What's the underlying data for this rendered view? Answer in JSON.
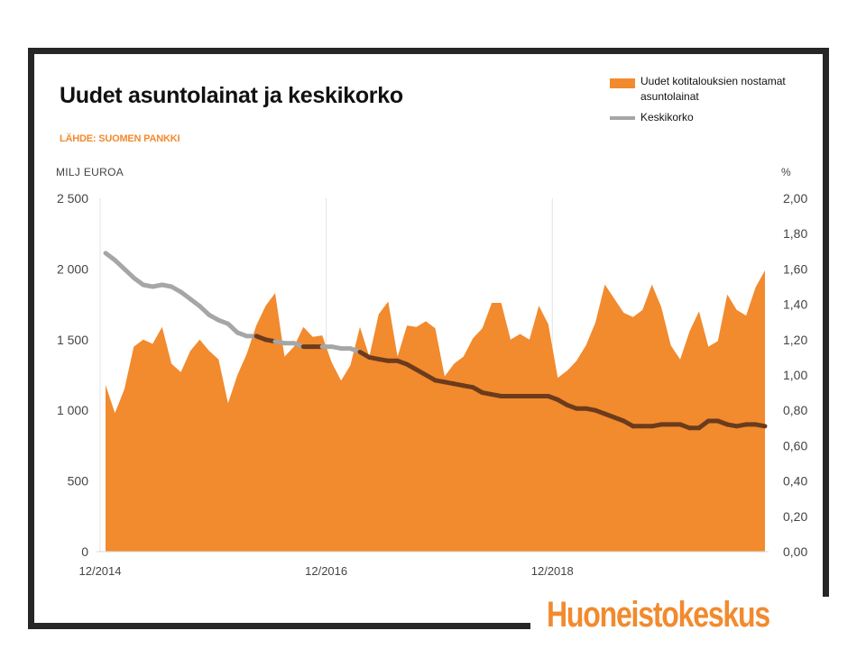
{
  "title": "Uudet asuntolainat ja keskikorko",
  "source": "LÄHDE: SUOMEN PANKKI",
  "brand": "Huoneistokeskus",
  "colors": {
    "area": "#f28a2e",
    "line_gray": "#a6a6a6",
    "line_dark": "#6b3b1c",
    "frame": "#262626"
  },
  "chart_data": {
    "type": "area",
    "title": "Uudet asuntolainat ja keskikorko",
    "left_unit": "MILJ EUROA",
    "right_unit": "%",
    "left_ticks": [
      "0",
      "500",
      "1 000",
      "1 500",
      "2 000",
      "2 500"
    ],
    "right_ticks": [
      "0,00",
      "0,20",
      "0,40",
      "0,60",
      "0,80",
      "1,00",
      "1,20",
      "1,40",
      "1,60",
      "1,80",
      "2,00"
    ],
    "x_tick_labels": [
      "12/2014",
      "12/2016",
      "12/2018"
    ],
    "ylim_left": [
      0,
      2500
    ],
    "ylim_right": [
      0,
      2.0
    ],
    "grid": "vertical lines at x tick labels",
    "legend_position": "top-right",
    "legend": [
      "Uudet kotitalouksien nostamat asuntolainat",
      "Keskikorko"
    ],
    "x_start": "2014-12",
    "x_end": "2020-08",
    "series": [
      {
        "name": "Uudet kotitalouksien nostamat asuntolainat",
        "axis": "left",
        "type": "area",
        "values": [
          1180,
          980,
          1150,
          1450,
          1500,
          1470,
          1590,
          1330,
          1270,
          1420,
          1500,
          1420,
          1360,
          1050,
          1250,
          1400,
          1600,
          1740,
          1830,
          1380,
          1450,
          1590,
          1520,
          1530,
          1340,
          1210,
          1320,
          1590,
          1380,
          1680,
          1770,
          1380,
          1600,
          1590,
          1630,
          1580,
          1240,
          1330,
          1380,
          1510,
          1580,
          1760,
          1760,
          1500,
          1540,
          1500,
          1740,
          1610,
          1230,
          1280,
          1350,
          1460,
          1620,
          1890,
          1790,
          1690,
          1660,
          1710,
          1890,
          1730,
          1460,
          1360,
          1560,
          1700,
          1450,
          1490,
          1820,
          1710,
          1670,
          1870,
          1990
        ]
      },
      {
        "name": "Keskikorko",
        "axis": "right",
        "type": "line",
        "values": [
          1.69,
          1.65,
          1.6,
          1.55,
          1.51,
          1.5,
          1.51,
          1.5,
          1.47,
          1.43,
          1.39,
          1.34,
          1.31,
          1.29,
          1.24,
          1.22,
          1.22,
          1.2,
          1.19,
          1.18,
          1.18,
          1.16,
          1.16,
          1.16,
          1.16,
          1.15,
          1.15,
          1.13,
          1.1,
          1.09,
          1.08,
          1.08,
          1.06,
          1.03,
          1.0,
          0.97,
          0.96,
          0.95,
          0.94,
          0.93,
          0.9,
          0.89,
          0.88,
          0.88,
          0.88,
          0.88,
          0.88,
          0.88,
          0.86,
          0.83,
          0.81,
          0.81,
          0.8,
          0.78,
          0.76,
          0.74,
          0.71,
          0.71,
          0.71,
          0.72,
          0.72,
          0.72,
          0.7,
          0.7,
          0.74,
          0.74,
          0.72,
          0.71,
          0.72,
          0.72,
          0.71
        ]
      }
    ]
  }
}
